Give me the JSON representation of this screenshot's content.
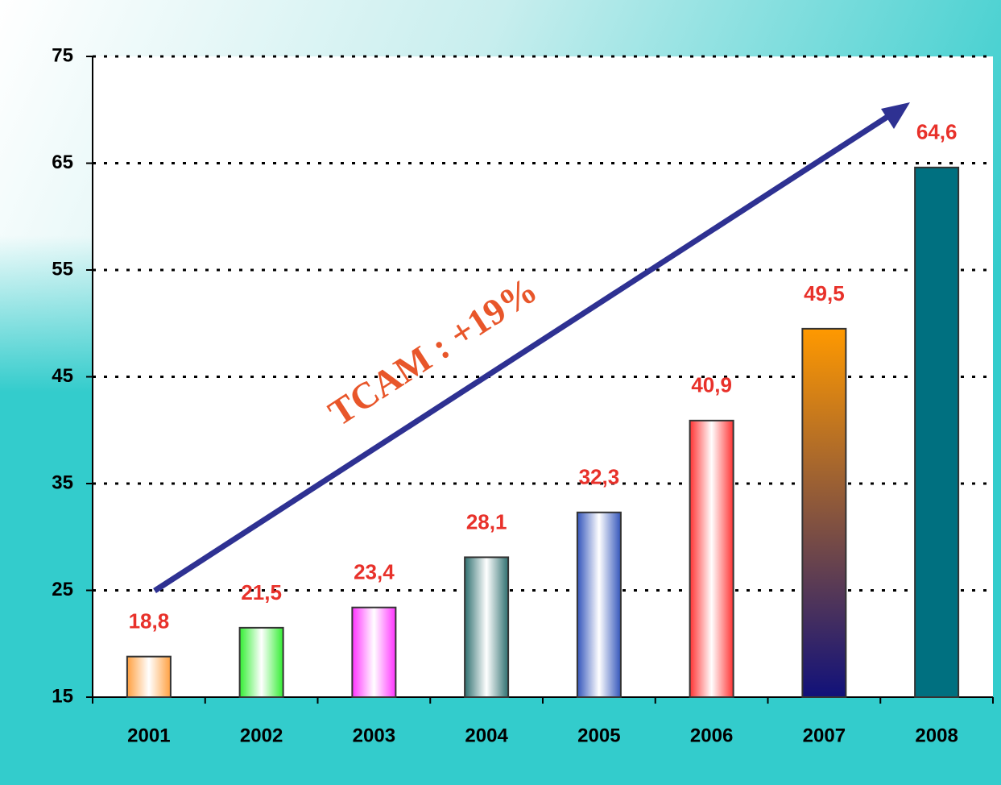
{
  "chart_data": {
    "type": "bar",
    "categories": [
      "2001",
      "2002",
      "2003",
      "2004",
      "2005",
      "2006",
      "2007",
      "2008"
    ],
    "values": [
      18.8,
      21.5,
      23.4,
      28.1,
      32.3,
      40.9,
      49.5,
      64.6
    ],
    "value_labels": [
      "18,8",
      "21,5",
      "23,4",
      "28,1",
      "32,3",
      "40,9",
      "49,5",
      "64,6"
    ],
    "colors": [
      "#ffa040",
      "#33ee33",
      "#ff33ff",
      "#2f7070",
      "#3355bb",
      "#ff3333",
      [
        "#ff9900",
        "#11117a"
      ],
      [
        "#007080",
        "#007080"
      ]
    ],
    "ylim": [
      15,
      75
    ],
    "yticks": [
      15,
      25,
      35,
      45,
      55,
      65,
      75
    ],
    "grid": true,
    "annotation": "TCAM : +19%"
  }
}
